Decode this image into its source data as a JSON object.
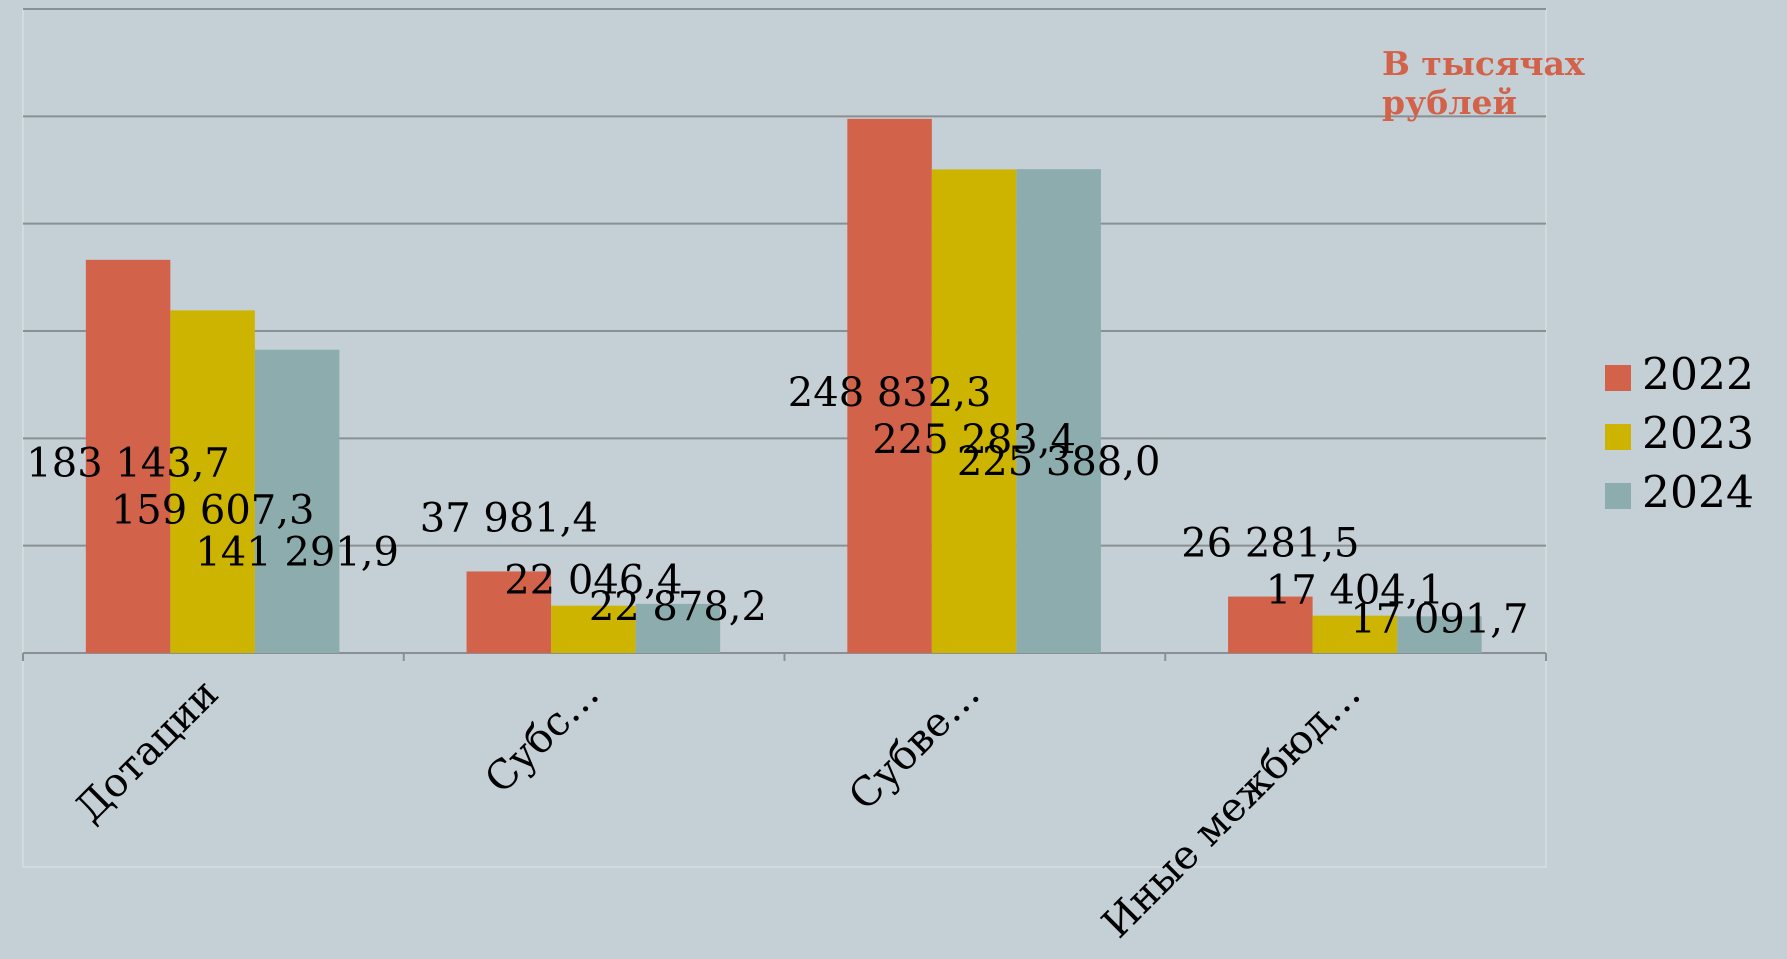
{
  "chart_data": {
    "type": "bar",
    "annotation": "В тысячах рублей",
    "categories": [
      "Дотации",
      "Субс…",
      "Субве…",
      "Иные межбюд…"
    ],
    "series": [
      {
        "name": "2022",
        "color": "#d2634a",
        "values": [
          183143.7,
          37981.4,
          248832.3,
          26281.5
        ],
        "value_labels": [
          "183 143,7",
          "37 981,4",
          "248 832,3",
          "26 281,5"
        ]
      },
      {
        "name": "2023",
        "color": "#cdb400",
        "values": [
          159607.3,
          22046.4,
          225283.4,
          17404.1
        ],
        "value_labels": [
          "159 607,3",
          "22 046,4",
          "225 283,4",
          "17 404,1"
        ]
      },
      {
        "name": "2024",
        "color": "#8cacad",
        "values": [
          141291.9,
          22878.2,
          225388.0,
          17091.7
        ],
        "value_labels": [
          "141 291,9",
          "22 878,2",
          "225 388,0",
          "17 091,7"
        ]
      }
    ],
    "ylim": [
      0,
      300000
    ],
    "yticks": [
      0,
      50000,
      100000,
      150000,
      200000,
      250000,
      300000
    ],
    "grid": true,
    "legend": "right"
  }
}
